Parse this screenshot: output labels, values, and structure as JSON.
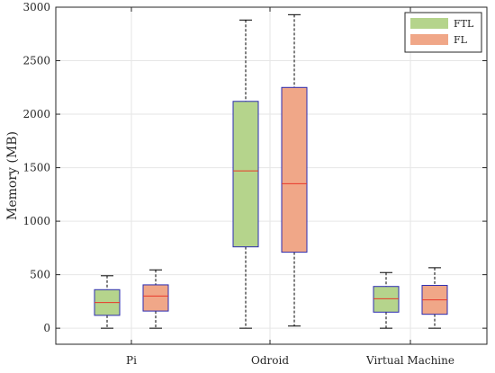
{
  "chart_data": {
    "type": "box",
    "ylabel": "Memory (MB)",
    "xlabel": "",
    "ylim": [
      -150,
      3000
    ],
    "yticks": [
      0,
      500,
      1000,
      1500,
      2000,
      2500,
      3000
    ],
    "grid": true,
    "legend_position": "top-right",
    "categories": [
      "Pi",
      "Odroid",
      "Virtual Machine"
    ],
    "series": [
      {
        "name": "FTL",
        "color": "#b5d48c",
        "boxes": [
          {
            "min": 0,
            "q1": 120,
            "median": 240,
            "q3": 360,
            "max": 490
          },
          {
            "min": 0,
            "q1": 760,
            "median": 1470,
            "q3": 2120,
            "max": 2880
          },
          {
            "min": 0,
            "q1": 150,
            "median": 275,
            "q3": 390,
            "max": 520
          }
        ]
      },
      {
        "name": "FL",
        "color": "#f0a788",
        "boxes": [
          {
            "min": 0,
            "q1": 160,
            "median": 300,
            "q3": 405,
            "max": 545
          },
          {
            "min": 20,
            "q1": 710,
            "median": 1350,
            "q3": 2250,
            "max": 2930
          },
          {
            "min": 0,
            "q1": 130,
            "median": 265,
            "q3": 400,
            "max": 565
          }
        ]
      }
    ],
    "colors": {
      "box_edge": "#2b2bb0",
      "median": "#e8382a",
      "whisker": "#000000",
      "grid": "#e6e6e6",
      "axis": "#262626"
    }
  }
}
